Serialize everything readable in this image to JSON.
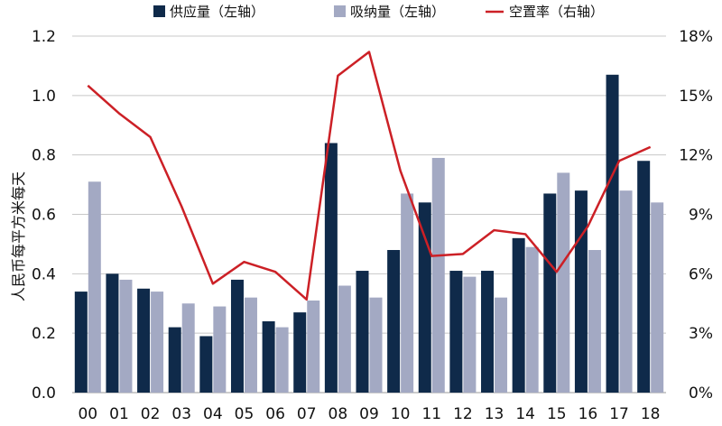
{
  "chart_data": {
    "type": "bar",
    "categories": [
      "00",
      "01",
      "02",
      "03",
      "04",
      "05",
      "06",
      "07",
      "08",
      "09",
      "10",
      "11",
      "12",
      "13",
      "14",
      "15",
      "16",
      "17",
      "18"
    ],
    "series": [
      {
        "name": "供应量（左轴）",
        "type": "bar",
        "axis": "left",
        "color": "#0f2a4a",
        "values": [
          0.34,
          0.4,
          0.35,
          0.22,
          0.19,
          0.38,
          0.24,
          0.27,
          0.84,
          0.41,
          0.48,
          0.64,
          0.41,
          0.41,
          0.52,
          0.67,
          0.68,
          1.07,
          0.78
        ]
      },
      {
        "name": "吸纳量（左轴）",
        "type": "bar",
        "axis": "left",
        "color": "#a3a9c3",
        "values": [
          0.71,
          0.38,
          0.34,
          0.3,
          0.29,
          0.32,
          0.22,
          0.31,
          0.36,
          0.32,
          0.67,
          0.79,
          0.39,
          0.32,
          0.49,
          0.74,
          0.48,
          0.68,
          0.64
        ]
      },
      {
        "name": "空置率（右轴）",
        "type": "line",
        "axis": "right",
        "color": "#cc2026",
        "values": [
          15.5,
          14.1,
          12.9,
          9.4,
          5.5,
          6.6,
          6.1,
          4.7,
          16.0,
          17.2,
          11.2,
          6.9,
          7.0,
          8.2,
          8.0,
          6.1,
          8.4,
          11.7,
          12.4
        ]
      }
    ],
    "ylabel": "人民币每平方米每天",
    "ylim": [
      0,
      1.2
    ],
    "yticks": [
      "0.0",
      "0.2",
      "0.4",
      "0.6",
      "0.8",
      "1.0",
      "1.2"
    ],
    "y2lim": [
      0,
      18
    ],
    "y2ticks": [
      "0%",
      "3%",
      "6%",
      "9%",
      "12%",
      "15%",
      "18%"
    ],
    "grid": true,
    "legend_position": "top"
  }
}
